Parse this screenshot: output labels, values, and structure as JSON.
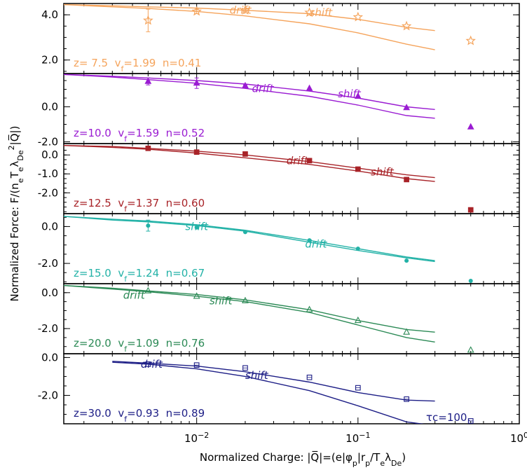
{
  "chart_data": {
    "type": "scatter",
    "x_scale": "log",
    "xlim": [
      0.0015,
      1.0
    ],
    "xlabel": "Normalized Charge: |Q|=(e|φp|rp/TeλDe)",
    "ylabel": "Normalized Force: F/(neTeλDe2|Q|)",
    "x_tick_labels": [
      "10−2",
      "10−1",
      "100"
    ],
    "annotation": "τc=100.",
    "panels": [
      {
        "z": "7.5",
        "vf": "1.99",
        "n": "0.41",
        "color": "#f5a45c",
        "marker": "star",
        "ylim": [
          1.4,
          4.5
        ],
        "yticks": [
          2.0,
          4.0
        ],
        "ytick_labels": [
          "2.0",
          "4.0"
        ],
        "points_x": [
          0.005,
          0.01,
          0.02,
          0.05,
          0.1,
          0.2,
          0.5
        ],
        "points_y": [
          3.75,
          4.15,
          4.2,
          4.1,
          3.9,
          3.5,
          2.85
        ],
        "points_err": [
          0.5,
          0.1,
          0.05,
          0,
          0,
          0,
          0
        ],
        "curve_x": [
          0.0015,
          0.003,
          0.005,
          0.01,
          0.02,
          0.05,
          0.1,
          0.2,
          0.3
        ],
        "drift_y": [
          4.45,
          4.4,
          4.35,
          4.3,
          4.2,
          4.05,
          3.8,
          3.45,
          3.3
        ],
        "shift_y": [
          4.45,
          4.35,
          4.28,
          4.15,
          3.95,
          3.6,
          3.2,
          2.7,
          2.45
        ],
        "drift_label": "drift",
        "shift_label": "shift",
        "drift_label_at": [
          0.016,
          4.2
        ],
        "shift_label_at": [
          0.05,
          4.1
        ]
      },
      {
        "z": "10.0",
        "vf": "1.59",
        "n": "0.52",
        "color": "#9a1cd2",
        "marker": "triangle-filled",
        "ylim": [
          -2.1,
          1.9
        ],
        "yticks": [
          -2.0,
          0.0
        ],
        "ytick_labels": [
          "-2.0",
          "0.0"
        ],
        "points_x": [
          0.005,
          0.01,
          0.02,
          0.05,
          0.1,
          0.2,
          0.5
        ],
        "points_y": [
          1.45,
          1.35,
          1.2,
          1.05,
          0.6,
          -0.05,
          -1.15
        ],
        "points_err": [
          0.2,
          0.3,
          0.05,
          0,
          0,
          0,
          0
        ],
        "curve_x": [
          0.0015,
          0.003,
          0.005,
          0.01,
          0.02,
          0.05,
          0.1,
          0.2,
          0.3
        ],
        "drift_y": [
          1.85,
          1.75,
          1.65,
          1.5,
          1.3,
          0.9,
          0.5,
          0.0,
          -0.15
        ],
        "shift_y": [
          1.85,
          1.7,
          1.55,
          1.35,
          1.05,
          0.6,
          0.1,
          -0.5,
          -0.65
        ],
        "drift_label": "drift",
        "shift_label": "shift",
        "drift_label_at": [
          0.022,
          1.05
        ],
        "shift_label_at": [
          0.075,
          0.75
        ]
      },
      {
        "z": "12.5",
        "vf": "1.37",
        "n": "0.60",
        "color": "#a82328",
        "marker": "square-filled",
        "ylim": [
          -3.1,
          0.6
        ],
        "yticks": [
          -2.0,
          -1.0,
          0.0
        ],
        "ytick_labels": [
          "-2.0",
          "-1.0",
          "0.0"
        ],
        "points_x": [
          0.005,
          0.01,
          0.02,
          0.05,
          0.1,
          0.2,
          0.5
        ],
        "points_y": [
          0.35,
          0.15,
          0.05,
          -0.3,
          -0.75,
          -1.3,
          -2.9
        ],
        "points_err": [
          0,
          0,
          0,
          0,
          0,
          0,
          0
        ],
        "curve_x": [
          0.0015,
          0.003,
          0.005,
          0.01,
          0.02,
          0.05,
          0.1,
          0.2,
          0.3
        ],
        "drift_y": [
          0.5,
          0.45,
          0.35,
          0.2,
          0.0,
          -0.35,
          -0.7,
          -1.05,
          -1.2
        ],
        "shift_y": [
          0.5,
          0.4,
          0.3,
          0.1,
          -0.15,
          -0.5,
          -0.85,
          -1.25,
          -1.4
        ],
        "drift_label": "drift",
        "shift_label": "shift",
        "drift_label_at": [
          0.036,
          -0.3
        ],
        "shift_label_at": [
          0.12,
          -0.9
        ]
      },
      {
        "z": "15.0",
        "vf": "1.24",
        "n": "0.67",
        "color": "#23b2a7",
        "marker": "circle-filled",
        "ylim": [
          -3.1,
          0.7
        ],
        "yticks": [
          -2.0,
          0.0
        ],
        "ytick_labels": [
          "-2.0",
          "0.0"
        ],
        "points_x": [
          0.005,
          0.01,
          0.02,
          0.05,
          0.1,
          0.2,
          0.5
        ],
        "points_y": [
          0.05,
          -0.05,
          -0.3,
          -0.75,
          -1.2,
          -1.85,
          -2.95
        ],
        "points_err": [
          0.3,
          0,
          0,
          0,
          0,
          0,
          0
        ],
        "curve_x": [
          0.0015,
          0.003,
          0.005,
          0.01,
          0.02,
          0.05,
          0.1,
          0.2,
          0.3
        ],
        "drift_y": [
          0.55,
          0.4,
          0.3,
          0.1,
          -0.2,
          -0.75,
          -1.2,
          -1.65,
          -1.85
        ],
        "shift_y": [
          0.55,
          0.35,
          0.25,
          0.05,
          -0.25,
          -0.85,
          -1.3,
          -1.7,
          -1.9
        ],
        "drift_label": "drift",
        "shift_label": "shift",
        "drift_label_at": [
          0.047,
          -0.95
        ],
        "shift_label_at": [
          0.0085,
          0.0
        ]
      },
      {
        "z": "20.0",
        "vf": "1.09",
        "n": "0.76",
        "color": "#2c8a56",
        "marker": "triangle-open",
        "ylim": [
          -3.4,
          0.5
        ],
        "yticks": [
          -2.0,
          0.0
        ],
        "ytick_labels": [
          "-2.0",
          "0.0"
        ],
        "points_x": [
          0.005,
          0.01,
          0.02,
          0.05,
          0.1,
          0.2,
          0.5
        ],
        "points_y": [
          0.1,
          -0.2,
          -0.45,
          -0.95,
          -1.55,
          -2.2,
          -3.2
        ],
        "points_err": [
          0,
          0,
          0,
          0,
          0,
          0,
          0
        ],
        "curve_x": [
          0.0015,
          0.003,
          0.005,
          0.01,
          0.02,
          0.05,
          0.1,
          0.2,
          0.3
        ],
        "drift_y": [
          0.4,
          0.25,
          0.1,
          -0.1,
          -0.4,
          -0.95,
          -1.55,
          -2.05,
          -2.2
        ],
        "shift_y": [
          0.4,
          0.2,
          0.05,
          -0.2,
          -0.5,
          -1.1,
          -1.8,
          -2.5,
          -2.75
        ],
        "drift_label": "drift",
        "shift_label": "shift",
        "drift_label_at": [
          0.0035,
          -0.15
        ],
        "shift_label_at": [
          0.012,
          -0.45
        ]
      },
      {
        "z": "30.0",
        "vf": "0.93",
        "n": "0.89",
        "color": "#1d1e86",
        "marker": "square-open",
        "ylim": [
          -3.5,
          0.2
        ],
        "yticks": [
          -2.0,
          0.0
        ],
        "ytick_labels": [
          "-2.0",
          "0.0"
        ],
        "points_x": [
          0.005,
          0.01,
          0.02,
          0.05,
          0.1,
          0.2,
          0.5
        ],
        "points_y": [
          -0.35,
          -0.4,
          -0.55,
          -1.05,
          -1.6,
          -2.2,
          -3.35
        ],
        "points_err": [
          0,
          0,
          0,
          0,
          0,
          0,
          0
        ],
        "curve_x": [
          0.003,
          0.005,
          0.01,
          0.02,
          0.05,
          0.1,
          0.2,
          0.3
        ],
        "drift_y": [
          -0.2,
          -0.3,
          -0.45,
          -0.75,
          -1.3,
          -1.85,
          -2.25,
          -2.3
        ],
        "shift_y": [
          -0.25,
          -0.35,
          -0.6,
          -1.0,
          -1.75,
          -2.55,
          -3.4,
          -3.6
        ],
        "drift_label": "drift",
        "shift_label": "shift",
        "drift_label_at": [
          0.0045,
          -0.35
        ],
        "shift_label_at": [
          0.02,
          -0.95
        ]
      }
    ]
  }
}
